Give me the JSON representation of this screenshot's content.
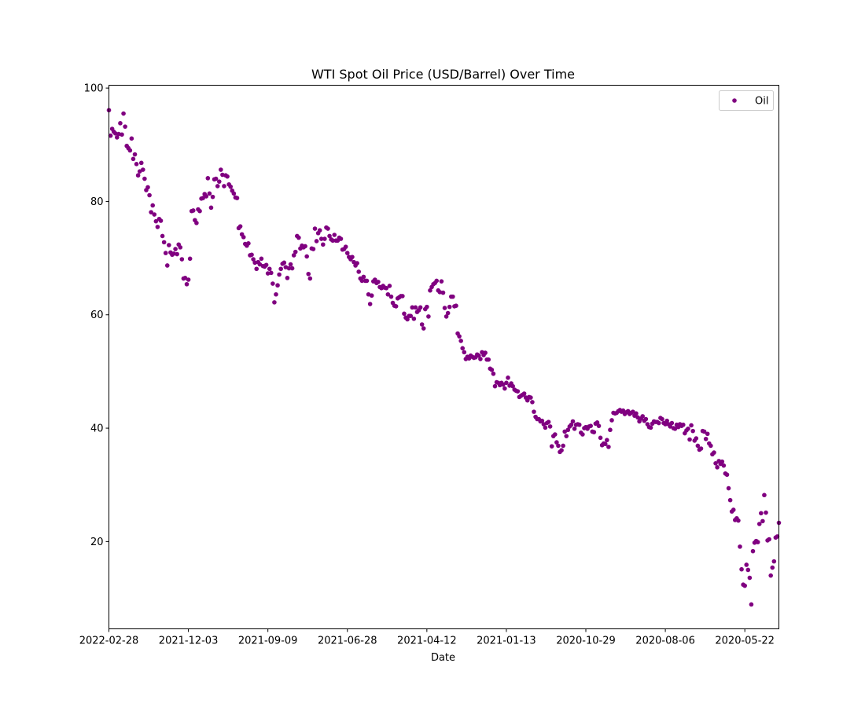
{
  "chart_data": {
    "type": "scatter",
    "title": "WTI Spot Oil Price (USD/Barrel) Over Time",
    "xlabel": "Date",
    "ylabel": "",
    "ylim": [
      4.6,
      100.5
    ],
    "yticks": [
      20,
      40,
      60,
      80,
      100
    ],
    "xticks": [
      "2022-02-28",
      "2021-12-03",
      "2021-09-09",
      "2021-06-28",
      "2021-04-12",
      "2021-01-13",
      "2020-10-29",
      "2020-08-06",
      "2020-05-22"
    ],
    "grid": false,
    "legend_position": "upper right",
    "series": [
      {
        "name": "Oil",
        "color": "#800080",
        "y": [
          96.1,
          91.6,
          92.8,
          92.3,
          92.0,
          91.3,
          91.9,
          93.8,
          91.8,
          95.5,
          93.2,
          89.8,
          89.4,
          89.0,
          91.1,
          87.5,
          88.3,
          86.6,
          84.6,
          85.3,
          86.8,
          85.6,
          84.0,
          82.0,
          82.5,
          81.1,
          78.1,
          79.3,
          77.7,
          76.5,
          75.5,
          76.9,
          76.6,
          73.9,
          72.8,
          70.9,
          68.7,
          72.3,
          71.0,
          70.6,
          70.8,
          71.6,
          70.7,
          72.4,
          71.9,
          69.8,
          66.4,
          66.5,
          65.4,
          66.2,
          69.9,
          78.3,
          78.4,
          76.7,
          76.2,
          78.6,
          78.3,
          80.5,
          80.6,
          81.3,
          80.9,
          84.1,
          81.4,
          78.9,
          80.8,
          83.9,
          84.0,
          82.7,
          83.5,
          85.6,
          84.7,
          82.7,
          84.6,
          84.4,
          83.0,
          82.6,
          81.9,
          81.4,
          80.7,
          80.6,
          75.3,
          75.6,
          74.2,
          73.7,
          72.5,
          72.2,
          72.6,
          70.5,
          70.6,
          69.8,
          69.2,
          68.1,
          69.3,
          68.9,
          69.9,
          68.6,
          68.5,
          68.8,
          67.3,
          68.1,
          67.4,
          65.5,
          62.2,
          63.6,
          65.2,
          67.1,
          68.1,
          69.0,
          69.2,
          68.4,
          66.5,
          68.2,
          68.9,
          68.2,
          70.5,
          71.1,
          73.9,
          73.6,
          71.7,
          72.2,
          71.9,
          72.1,
          70.3,
          67.2,
          66.4,
          71.7,
          71.6,
          75.2,
          73.0,
          74.4,
          74.9,
          73.4,
          72.4,
          73.4,
          75.4,
          75.2,
          73.9,
          73.3,
          73.1,
          74.1,
          73.1,
          73.1,
          73.6,
          73.4,
          71.5,
          71.6,
          72.0,
          70.9,
          70.2,
          69.8,
          70.2,
          69.3,
          68.7,
          69.1,
          67.6,
          66.4,
          66.0,
          66.7,
          66.0,
          66.0,
          63.6,
          61.9,
          63.4,
          65.9,
          66.2,
          65.6,
          65.8,
          64.9,
          64.7,
          65.1,
          64.8,
          64.7,
          63.6,
          65.1,
          63.2,
          62.1,
          61.6,
          61.5,
          62.9,
          63.1,
          63.3,
          63.3,
          60.2,
          59.5,
          59.2,
          59.8,
          59.8,
          61.3,
          59.3,
          61.3,
          60.5,
          60.8,
          61.3,
          58.3,
          57.6,
          61.0,
          61.4,
          59.7,
          64.3,
          64.9,
          65.4,
          65.6,
          66.0,
          64.3,
          64.0,
          65.9,
          63.9,
          61.2,
          59.7,
          60.3,
          61.4,
          63.2,
          63.2,
          61.5,
          61.6,
          56.7,
          56.2,
          55.4,
          54.1,
          53.4,
          52.2,
          52.6,
          52.3,
          52.8,
          52.6,
          52.4,
          52.5,
          53.0,
          52.8,
          52.2,
          53.4,
          52.9,
          53.3,
          52.1,
          52.1,
          50.5,
          50.3,
          49.6,
          47.4,
          48.1,
          48.0,
          47.6,
          48.0,
          47.7,
          47.0,
          48.0,
          48.9,
          47.5,
          47.9,
          47.4,
          46.8,
          46.6,
          46.5,
          45.5,
          45.7,
          45.9,
          46.1,
          45.4,
          44.9,
          45.5,
          45.4,
          44.6,
          42.9,
          42.0,
          41.6,
          41.6,
          41.2,
          41.3,
          40.7,
          40.1,
          40.9,
          41.1,
          40.3,
          36.8,
          38.6,
          38.9,
          37.5,
          36.9,
          35.8,
          36.1,
          36.9,
          39.4,
          38.6,
          39.7,
          40.3,
          40.6,
          41.2,
          39.9,
          40.6,
          40.7,
          40.6,
          39.2,
          38.9,
          40.0,
          40.2,
          39.9,
          40.3,
          40.4,
          39.4,
          39.3,
          40.8,
          41.0,
          40.4,
          38.3,
          37.0,
          37.3,
          37.2,
          37.9,
          36.7,
          39.7,
          41.4,
          42.7,
          42.6,
          42.7,
          43.0,
          43.2,
          42.9,
          43.1,
          42.5,
          42.8,
          43.0,
          42.5,
          42.7,
          42.9,
          42.2,
          42.6,
          41.9,
          41.2,
          41.7,
          42.1,
          41.3,
          41.6,
          40.7,
          40.2,
          40.1,
          40.8,
          41.2,
          41.1,
          41.1,
          40.9,
          41.8,
          41.6,
          40.9,
          40.7,
          41.3,
          40.7,
          40.3,
          40.9,
          40.0,
          39.9,
          40.6,
          40.2,
          40.7,
          40.4,
          40.6,
          39.1,
          39.6,
          39.9,
          38.0,
          40.5,
          39.5,
          37.8,
          38.2,
          36.9,
          36.2,
          36.4,
          39.5,
          39.4,
          38.1,
          39.0,
          37.3,
          36.9,
          35.4,
          35.7,
          33.8,
          33.1,
          34.2,
          33.7,
          34.1,
          33.4,
          32.0,
          31.8,
          29.4,
          27.3,
          25.3,
          25.6,
          23.8,
          24.1,
          23.7,
          19.1,
          15.1,
          12.4,
          12.2,
          15.9,
          15.0,
          13.6,
          8.9,
          18.3,
          19.8,
          20.1,
          19.9,
          23.1,
          25.0,
          23.6,
          28.2,
          25.1,
          20.2,
          20.4,
          14.0,
          15.4,
          16.5,
          20.7,
          20.9,
          23.3
        ]
      }
    ]
  }
}
